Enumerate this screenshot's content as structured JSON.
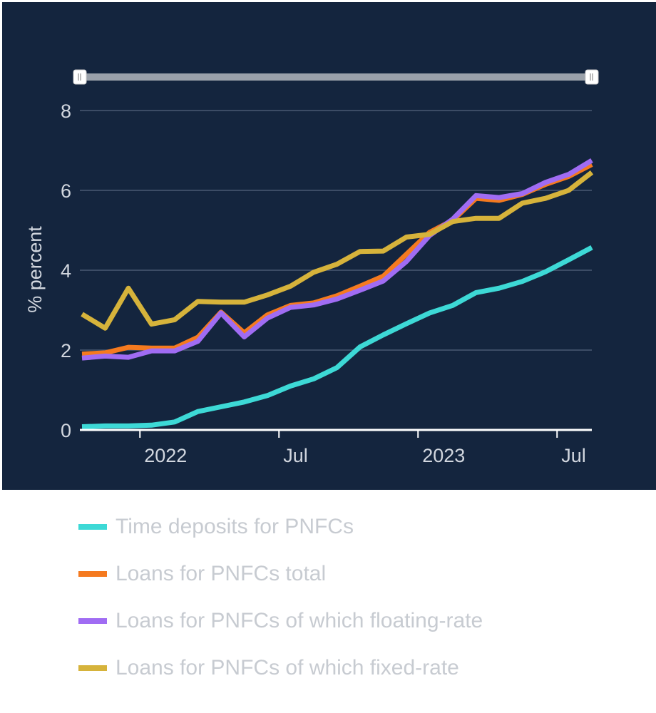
{
  "chart_data": {
    "type": "line",
    "ylabel": "% percent",
    "ylim": [
      0,
      8
    ],
    "y_ticks": [
      "0",
      "2",
      "4",
      "6",
      "8"
    ],
    "x_ticks": [
      {
        "label": "2022",
        "index": 3
      },
      {
        "label": "Jul",
        "index": 9
      },
      {
        "label": "2023",
        "index": 15
      },
      {
        "label": "Jul",
        "index": 21
      }
    ],
    "x": [
      "2021-10",
      "2021-11",
      "2021-12",
      "2022-01",
      "2022-02",
      "2022-03",
      "2022-04",
      "2022-05",
      "2022-06",
      "2022-07",
      "2022-08",
      "2022-09",
      "2022-10",
      "2022-11",
      "2022-12",
      "2023-01",
      "2023-02",
      "2023-03",
      "2023-04",
      "2023-05",
      "2023-06",
      "2023-07",
      "2023-08"
    ],
    "series": [
      {
        "name": "Time deposits for PNFCs",
        "color": "#3dd9d6",
        "values": [
          0.08,
          0.1,
          0.1,
          0.12,
          0.2,
          0.46,
          0.58,
          0.7,
          0.86,
          1.1,
          1.28,
          1.56,
          2.08,
          2.38,
          2.66,
          2.93,
          3.12,
          3.44,
          3.55,
          3.72,
          3.96,
          4.26,
          4.57
        ]
      },
      {
        "name": "Loans for PNFCs total",
        "color": "#f57a1f",
        "values": [
          1.9,
          1.93,
          2.07,
          2.05,
          2.05,
          2.32,
          2.95,
          2.43,
          2.88,
          3.12,
          3.18,
          3.36,
          3.6,
          3.85,
          4.4,
          4.95,
          5.25,
          5.8,
          5.75,
          5.9,
          6.15,
          6.35,
          6.65
        ]
      },
      {
        "name": "Loans for PNFCs of which floating-rate",
        "color": "#a06cf3",
        "values": [
          1.8,
          1.85,
          1.82,
          1.98,
          1.98,
          2.22,
          2.93,
          2.33,
          2.8,
          3.07,
          3.13,
          3.28,
          3.5,
          3.73,
          4.22,
          4.87,
          5.28,
          5.87,
          5.82,
          5.92,
          6.2,
          6.4,
          6.75
        ]
      },
      {
        "name": "Loans for PNFCs of which fixed-rate",
        "color": "#d6b33b",
        "values": [
          2.9,
          2.55,
          3.55,
          2.65,
          2.76,
          3.22,
          3.2,
          3.2,
          3.38,
          3.6,
          3.95,
          4.15,
          4.47,
          4.48,
          4.83,
          4.9,
          5.22,
          5.3,
          5.3,
          5.68,
          5.8,
          6.0,
          6.45
        ]
      }
    ],
    "grid": true,
    "legend": "bottom",
    "range_slider": true
  },
  "colors": {
    "background": "#14253e",
    "gridline": "#4a5a72",
    "axis": "#ffffff",
    "text": "#d2d7df",
    "slider_track": "#9aa1aa"
  }
}
